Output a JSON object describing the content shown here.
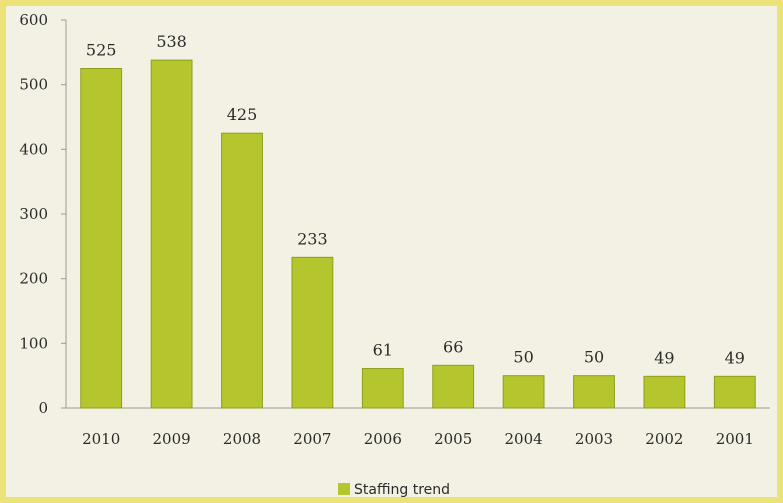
{
  "chart_data": {
    "type": "bar",
    "categories": [
      "2010",
      "2009",
      "2008",
      "2007",
      "2006",
      "2005",
      "2004",
      "2003",
      "2002",
      "2001"
    ],
    "values": [
      525,
      538,
      425,
      233,
      61,
      66,
      50,
      50,
      49,
      49
    ],
    "data_labels": [
      "525",
      "538",
      "425",
      "233",
      "61",
      "66",
      "50",
      "50",
      "49",
      "49"
    ],
    "y_ticks": [
      0,
      100,
      200,
      300,
      400,
      500,
      600
    ],
    "ylim": [
      0,
      600
    ],
    "grid": false,
    "legend": {
      "position": "bottom",
      "entries": [
        {
          "name": "Staffing trend"
        }
      ]
    },
    "colors": {
      "bar": "#b5c52d",
      "bar_edge": "#8f9e1c",
      "plot_bg": "#f3f1e4",
      "border": "#ebe37a",
      "axis": "#999999"
    }
  }
}
